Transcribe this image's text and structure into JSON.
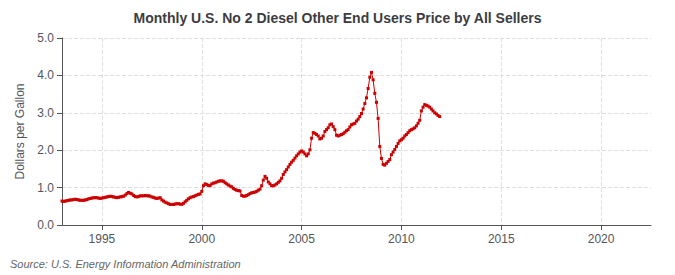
{
  "chart_data": {
    "type": "line",
    "title": "Monthly U.S. No 2 Diesel Other End Users Price by All Sellers",
    "ylabel": "Dollars per Gallon",
    "annotations": [
      "Source: U.S. Energy Information Administration"
    ],
    "color": "#cc0000",
    "marker": "square",
    "line_style": "solid",
    "grid": true,
    "xlim": [
      1993.0,
      2022.5
    ],
    "xticks": [
      1995,
      2000,
      2005,
      2010,
      2015,
      2020
    ],
    "ylim": [
      0.0,
      5.0
    ],
    "yticks": [
      {
        "value": 0.0,
        "label": "0.0"
      },
      {
        "value": 1.0,
        "label": "1.0"
      },
      {
        "value": 2.0,
        "label": "2.0"
      },
      {
        "value": 3.0,
        "label": "3.0"
      },
      {
        "value": 4.0,
        "label": "4.0"
      },
      {
        "value": 5.0,
        "label": "5.0"
      }
    ],
    "x": [
      1993.0,
      1993.083,
      1993.167,
      1993.25,
      1993.333,
      1993.417,
      1993.5,
      1993.583,
      1993.667,
      1993.75,
      1993.833,
      1993.917,
      1994.0,
      1994.083,
      1994.167,
      1994.25,
      1994.333,
      1994.417,
      1994.5,
      1994.583,
      1994.667,
      1994.75,
      1994.833,
      1994.917,
      1995.0,
      1995.083,
      1995.167,
      1995.25,
      1995.333,
      1995.417,
      1995.5,
      1995.583,
      1995.667,
      1995.75,
      1995.833,
      1995.917,
      1996.0,
      1996.083,
      1996.167,
      1996.25,
      1996.333,
      1996.417,
      1996.5,
      1996.583,
      1996.667,
      1996.75,
      1996.833,
      1996.917,
      1997.0,
      1997.083,
      1997.167,
      1997.25,
      1997.333,
      1997.417,
      1997.5,
      1997.583,
      1997.667,
      1997.75,
      1997.833,
      1997.917,
      1998.0,
      1998.083,
      1998.167,
      1998.25,
      1998.333,
      1998.417,
      1998.5,
      1998.583,
      1998.667,
      1998.75,
      1998.833,
      1998.917,
      1999.0,
      1999.083,
      1999.167,
      1999.25,
      1999.333,
      1999.417,
      1999.5,
      1999.583,
      1999.667,
      1999.75,
      1999.833,
      1999.917,
      2000.0,
      2000.083,
      2000.167,
      2000.25,
      2000.333,
      2000.417,
      2000.5,
      2000.583,
      2000.667,
      2000.75,
      2000.833,
      2000.917,
      2001.0,
      2001.083,
      2001.167,
      2001.25,
      2001.333,
      2001.417,
      2001.5,
      2001.583,
      2001.667,
      2001.75,
      2001.833,
      2001.917,
      2002.0,
      2002.083,
      2002.167,
      2002.25,
      2002.333,
      2002.417,
      2002.5,
      2002.583,
      2002.667,
      2002.75,
      2002.833,
      2002.917,
      2003.0,
      2003.083,
      2003.167,
      2003.25,
      2003.333,
      2003.417,
      2003.5,
      2003.583,
      2003.667,
      2003.75,
      2003.833,
      2003.917,
      2004.0,
      2004.083,
      2004.167,
      2004.25,
      2004.333,
      2004.417,
      2004.5,
      2004.583,
      2004.667,
      2004.75,
      2004.833,
      2004.917,
      2005.0,
      2005.083,
      2005.167,
      2005.25,
      2005.333,
      2005.417,
      2005.5,
      2005.583,
      2005.667,
      2005.75,
      2005.833,
      2005.917,
      2006.0,
      2006.083,
      2006.167,
      2006.25,
      2006.333,
      2006.417,
      2006.5,
      2006.583,
      2006.667,
      2006.75,
      2006.833,
      2006.917,
      2007.0,
      2007.083,
      2007.167,
      2007.25,
      2007.333,
      2007.417,
      2007.5,
      2007.583,
      2007.667,
      2007.75,
      2007.833,
      2007.917,
      2008.0,
      2008.083,
      2008.167,
      2008.25,
      2008.333,
      2008.417,
      2008.5,
      2008.583,
      2008.667,
      2008.75,
      2008.833,
      2008.917,
      2009.0,
      2009.083,
      2009.167,
      2009.25,
      2009.333,
      2009.417,
      2009.5,
      2009.583,
      2009.667,
      2009.75,
      2009.833,
      2009.917,
      2010.0,
      2010.083,
      2010.167,
      2010.25,
      2010.333,
      2010.417,
      2010.5,
      2010.583,
      2010.667,
      2010.75,
      2010.833,
      2010.917,
      2011.0,
      2011.083,
      2011.167,
      2011.25,
      2011.333,
      2011.417,
      2011.5,
      2011.583,
      2011.667,
      2011.75,
      2011.833,
      2011.917
    ],
    "values": [
      0.64,
      0.63,
      0.64,
      0.65,
      0.66,
      0.67,
      0.67,
      0.68,
      0.69,
      0.68,
      0.67,
      0.66,
      0.66,
      0.66,
      0.67,
      0.68,
      0.7,
      0.71,
      0.72,
      0.73,
      0.73,
      0.73,
      0.72,
      0.71,
      0.72,
      0.73,
      0.74,
      0.75,
      0.76,
      0.77,
      0.76,
      0.75,
      0.74,
      0.73,
      0.74,
      0.75,
      0.76,
      0.77,
      0.8,
      0.84,
      0.87,
      0.85,
      0.83,
      0.79,
      0.76,
      0.75,
      0.76,
      0.78,
      0.78,
      0.78,
      0.79,
      0.78,
      0.78,
      0.77,
      0.75,
      0.74,
      0.72,
      0.71,
      0.72,
      0.73,
      0.67,
      0.64,
      0.61,
      0.59,
      0.57,
      0.55,
      0.55,
      0.55,
      0.56,
      0.57,
      0.57,
      0.56,
      0.55,
      0.58,
      0.62,
      0.66,
      0.7,
      0.73,
      0.75,
      0.76,
      0.78,
      0.8,
      0.82,
      0.83,
      0.9,
      1.05,
      1.1,
      1.08,
      1.06,
      1.05,
      1.1,
      1.12,
      1.13,
      1.15,
      1.17,
      1.18,
      1.18,
      1.17,
      1.13,
      1.1,
      1.07,
      1.04,
      1.02,
      0.98,
      0.95,
      0.93,
      0.92,
      0.91,
      0.79,
      0.77,
      0.77,
      0.79,
      0.81,
      0.84,
      0.86,
      0.87,
      0.88,
      0.9,
      0.93,
      0.96,
      1.05,
      1.2,
      1.3,
      1.25,
      1.15,
      1.1,
      1.05,
      1.05,
      1.07,
      1.1,
      1.14,
      1.18,
      1.25,
      1.35,
      1.42,
      1.48,
      1.55,
      1.62,
      1.68,
      1.73,
      1.79,
      1.85,
      1.9,
      1.95,
      1.98,
      1.95,
      1.9,
      1.85,
      1.9,
      2.01,
      2.32,
      2.47,
      2.45,
      2.42,
      2.38,
      2.3,
      2.32,
      2.38,
      2.5,
      2.55,
      2.6,
      2.68,
      2.7,
      2.63,
      2.55,
      2.4,
      2.38,
      2.4,
      2.42,
      2.44,
      2.48,
      2.52,
      2.55,
      2.62,
      2.68,
      2.7,
      2.72,
      2.78,
      2.83,
      2.9,
      2.98,
      3.1,
      3.25,
      3.4,
      3.65,
      3.95,
      4.08,
      3.88,
      3.52,
      3.28,
      2.85,
      2.1,
      1.78,
      1.62,
      1.6,
      1.65,
      1.7,
      1.75,
      1.88,
      1.95,
      2.02,
      2.1,
      2.18,
      2.25,
      2.28,
      2.32,
      2.38,
      2.42,
      2.47,
      2.52,
      2.55,
      2.57,
      2.6,
      2.65,
      2.72,
      2.8,
      3.05,
      3.15,
      3.22,
      3.2,
      3.18,
      3.15,
      3.1,
      3.05,
      3.0,
      2.97,
      2.93,
      2.9
    ]
  }
}
